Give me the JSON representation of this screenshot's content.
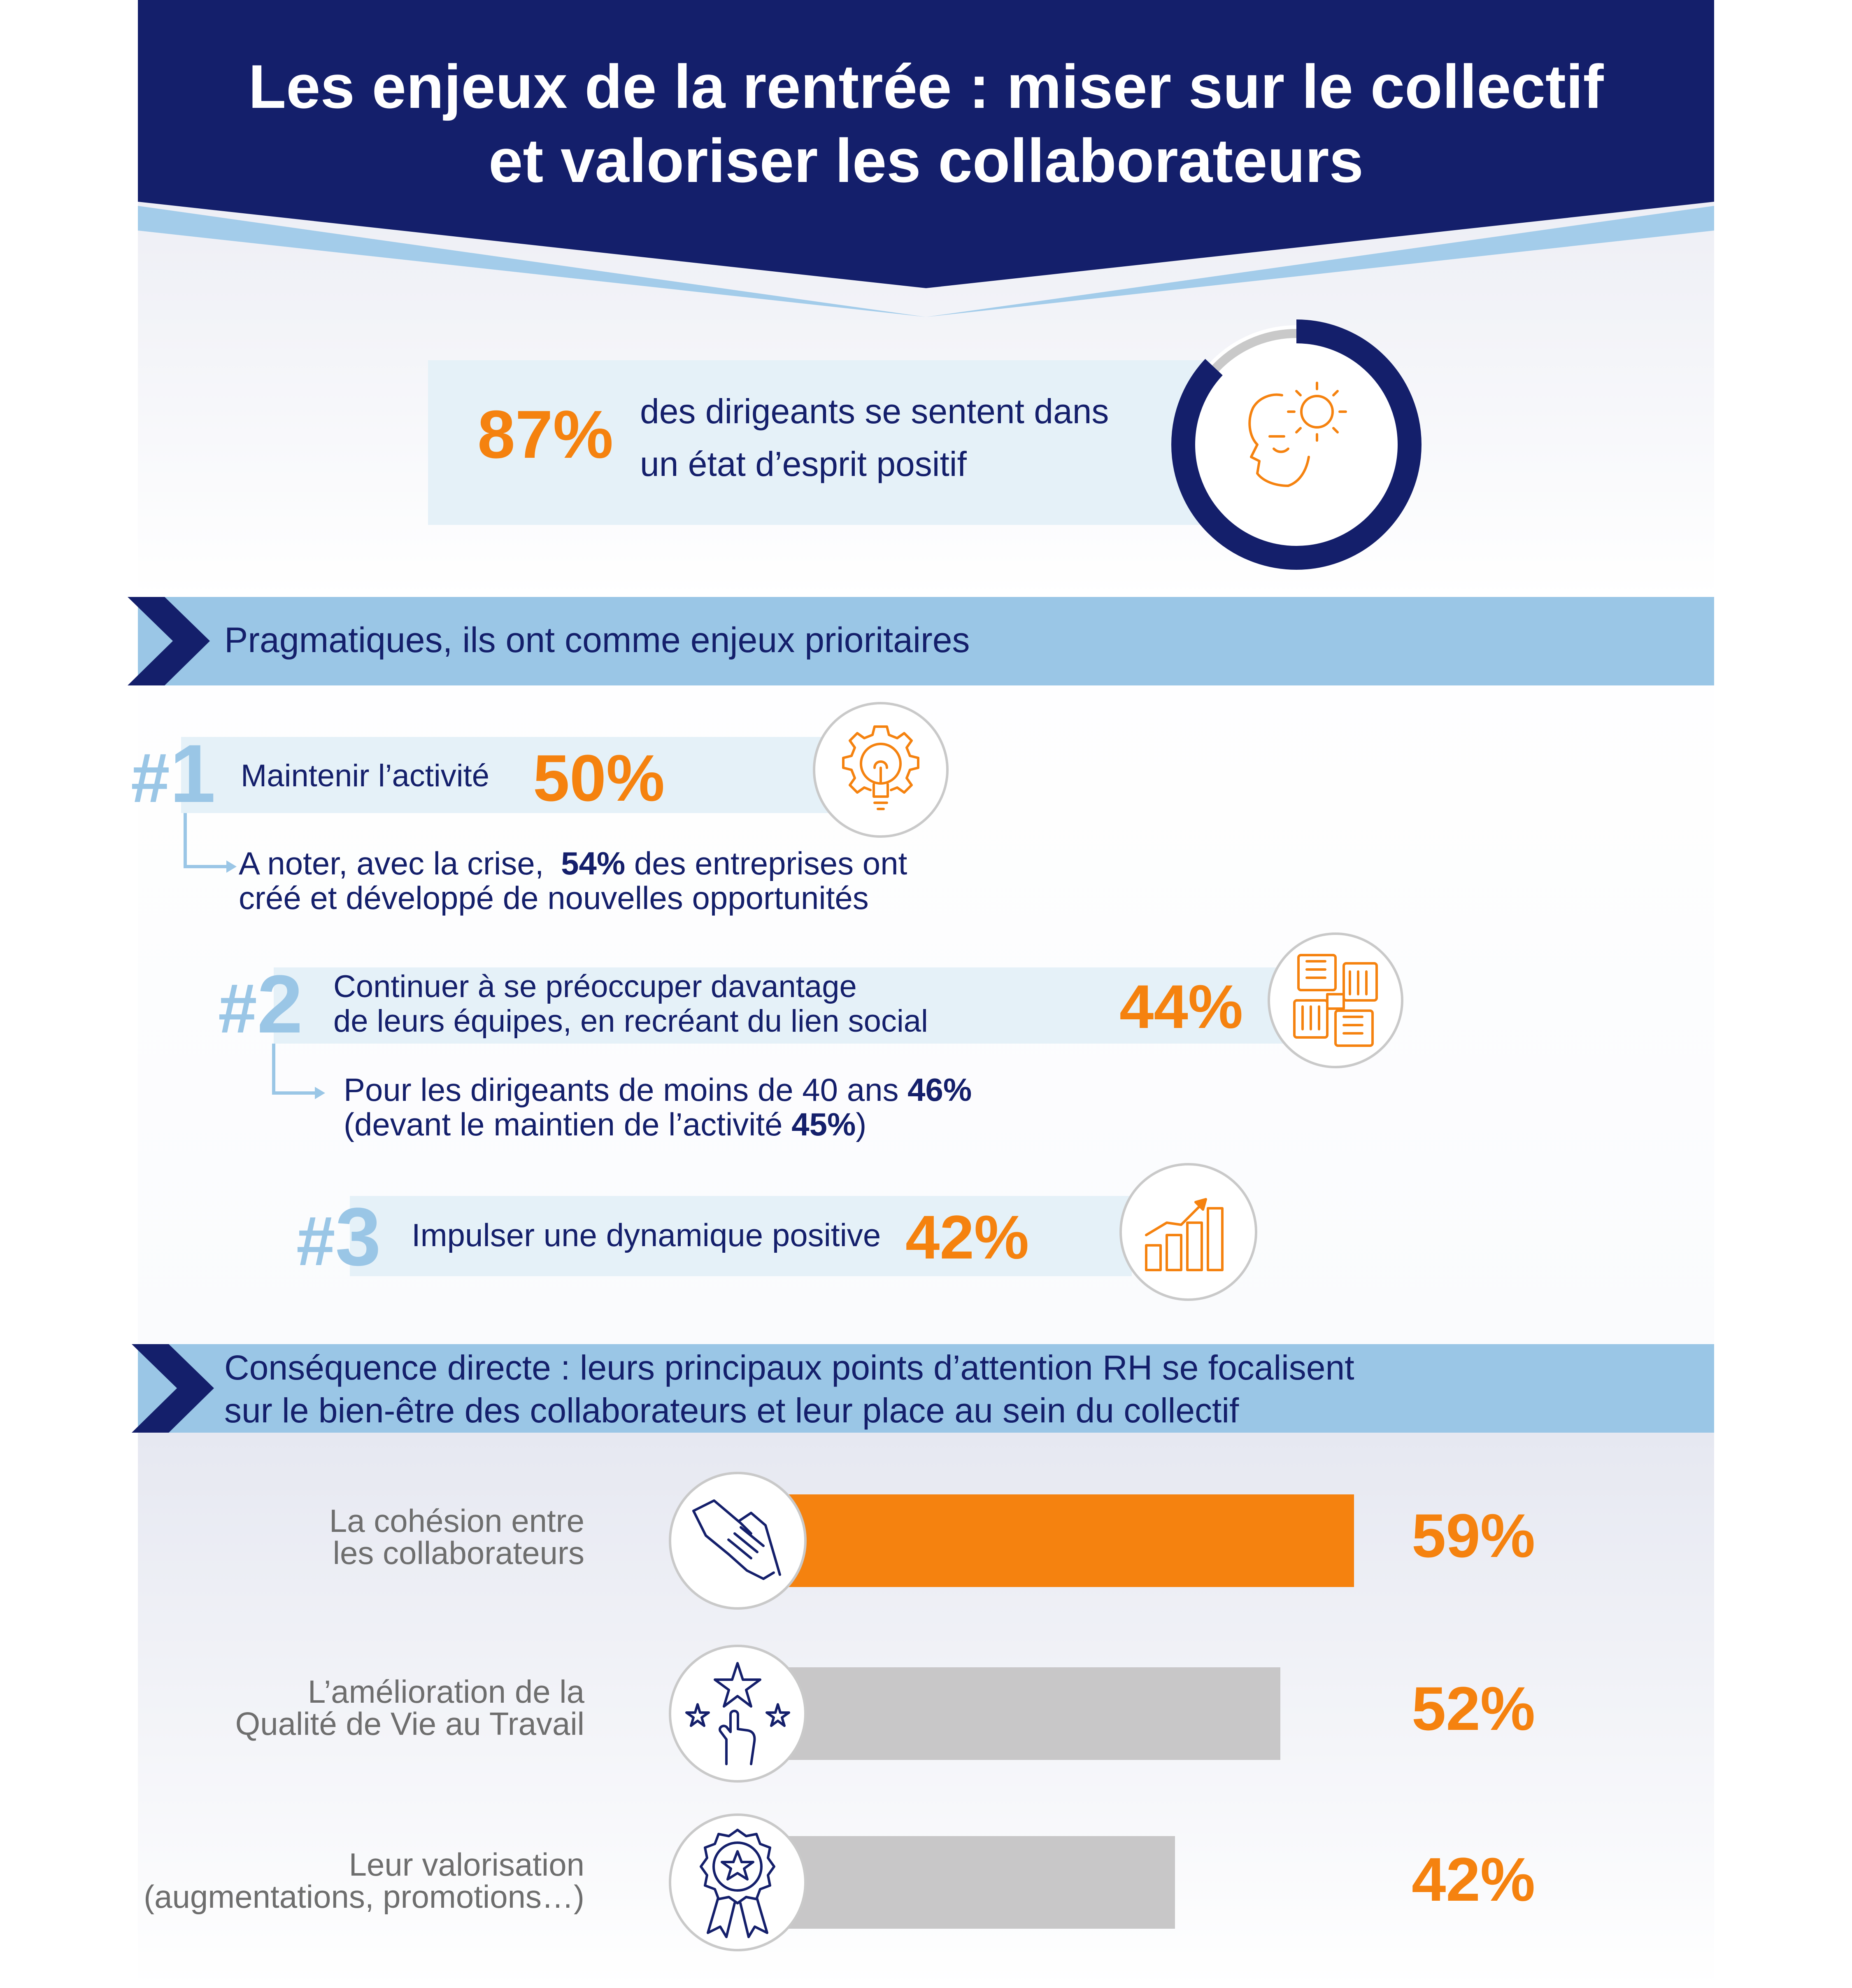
{
  "header": {
    "title_line1": "Les enjeux de la rentrée : miser sur le collectif",
    "title_line2": "et valoriser les collaborateurs"
  },
  "mood": {
    "percent": "87%",
    "text_line1": "des dirigeants se sentent dans",
    "text_line2": "un état d’esprit positif",
    "ring_fraction": 0.87,
    "icon": "positive-mind-icon"
  },
  "section1": {
    "title": "Pragmatiques, ils ont comme enjeux prioritaires"
  },
  "priorities": [
    {
      "hash": "#",
      "rank": "1",
      "label": "Maintenir l’activité",
      "percent": "50%",
      "icon": "gear-lightbulb-icon",
      "note_prefix": "A noter, avec la crise, ",
      "note_pct": "54%",
      "note_suffix": " des entreprises ont",
      "note_line2": "créé et développé de nouvelles opportunités"
    },
    {
      "hash": "#",
      "rank": "2",
      "label_line1": "Continuer à se préoccuper davantage",
      "label_line2": "de leurs équipes, en recréant du lien social",
      "percent": "44%",
      "icon": "joined-hands-icon",
      "note_prefix": "Pour les dirigeants de moins de 40 ans ",
      "note_pct": "46%",
      "note2_prefix": "(devant le maintien de l’activité ",
      "note2_pct": "45%",
      "note2_suffix": ")"
    },
    {
      "hash": "#",
      "rank": "3",
      "label": "Impulser une dynamique positive",
      "percent": "42%",
      "icon": "growth-chart-icon"
    }
  ],
  "section2": {
    "title_line1": "Conséquence directe : leurs principaux points d’attention RH se focalisent",
    "title_line2": "sur le bien-être des collaborateurs et leur place au sein du collectif"
  },
  "chart_data": {
    "type": "bar",
    "orientation": "horizontal",
    "categories": [
      "La cohésion entre les collaborateurs",
      "L’amélioration de la Qualité de Vie au Travail",
      "Leur valorisation (augmentations, promotions…)"
    ],
    "values": [
      59,
      52,
      42
    ],
    "value_labels": [
      "59%",
      "52%",
      "42%"
    ],
    "colors": [
      "#f5820f",
      "#c8c7c8",
      "#c8c7c8"
    ]
  },
  "bars": [
    {
      "label_line1": "La cohésion entre",
      "label_line2": "les collaborateurs",
      "icon": "handshake-icon"
    },
    {
      "label_line1": "L’amélioration de la",
      "label_line2": "Qualité de Vie au Travail",
      "icon": "stars-hand-icon"
    },
    {
      "label_line1": "Leur valorisation",
      "label_line2": "(augmentations, promotions…)",
      "icon": "award-badge-icon"
    }
  ]
}
